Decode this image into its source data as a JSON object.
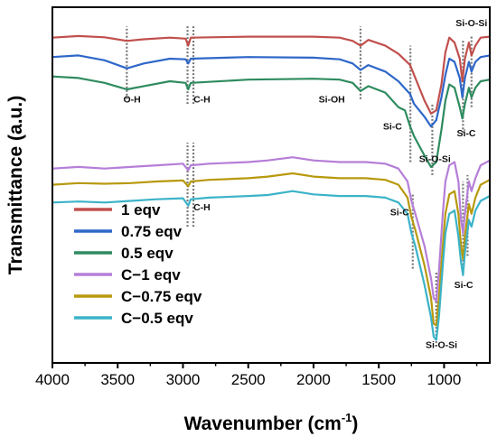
{
  "chart_data": {
    "type": "line",
    "xlabel": "Wavenumber (cm",
    "xlabel_sup": "-1",
    "xlabel_end": ")",
    "ylabel": "Transmittance (a.u.)",
    "xlim": [
      4000,
      650
    ],
    "x_reversed": true,
    "ylim": [
      0,
      100
    ],
    "y_ticks_shown": false,
    "x_ticks": [
      4000,
      3500,
      3000,
      2500,
      2000,
      1500,
      1000
    ],
    "x_tick_labels": [
      "4000",
      "3500",
      "3000",
      "2500",
      "2000",
      "1500",
      "1000"
    ],
    "grid": false,
    "legend_position": "bottom-left",
    "series": [
      {
        "name": "1 eqv",
        "color": "#c0504d",
        "points": [
          [
            4000,
            94.5
          ],
          [
            3800,
            95.0
          ],
          [
            3600,
            94.6
          ],
          [
            3430,
            93.5
          ],
          [
            3300,
            94.0
          ],
          [
            3100,
            94.5
          ],
          [
            2980,
            94.2
          ],
          [
            2960,
            92.0
          ],
          [
            2940,
            94.5
          ],
          [
            2500,
            94.8
          ],
          [
            2000,
            94.8
          ],
          [
            1800,
            94.5
          ],
          [
            1700,
            93.5
          ],
          [
            1640,
            92.0
          ],
          [
            1580,
            93.8
          ],
          [
            1450,
            92.0
          ],
          [
            1350,
            89.5
          ],
          [
            1260,
            86.0
          ],
          [
            1230,
            83.0
          ],
          [
            1150,
            75.0
          ],
          [
            1100,
            71.0
          ],
          [
            1060,
            72.0
          ],
          [
            1020,
            80.0
          ],
          [
            990,
            90.0
          ],
          [
            960,
            94.5
          ],
          [
            920,
            93.0
          ],
          [
            880,
            88.0
          ],
          [
            860,
            81.0
          ],
          [
            840,
            88.0
          ],
          [
            810,
            93.0
          ],
          [
            790,
            89.0
          ],
          [
            760,
            92.0
          ],
          [
            720,
            94.5
          ],
          [
            650,
            94.8
          ]
        ]
      },
      {
        "name": "0.75 eqv",
        "color": "#2e67c8",
        "points": [
          [
            4000,
            88.5
          ],
          [
            3800,
            89.0
          ],
          [
            3600,
            87.5
          ],
          [
            3430,
            85.0
          ],
          [
            3300,
            86.5
          ],
          [
            3100,
            88.0
          ],
          [
            2980,
            87.8
          ],
          [
            2960,
            86.5
          ],
          [
            2940,
            88.0
          ],
          [
            2500,
            88.5
          ],
          [
            2000,
            88.3
          ],
          [
            1800,
            87.8
          ],
          [
            1700,
            86.5
          ],
          [
            1640,
            84.5
          ],
          [
            1580,
            86.0
          ],
          [
            1450,
            84.0
          ],
          [
            1350,
            81.0
          ],
          [
            1260,
            77.0
          ],
          [
            1230,
            74.0
          ],
          [
            1150,
            70.0
          ],
          [
            1100,
            67.0
          ],
          [
            1060,
            69.0
          ],
          [
            1020,
            76.0
          ],
          [
            990,
            83.0
          ],
          [
            960,
            88.0
          ],
          [
            920,
            87.0
          ],
          [
            880,
            82.0
          ],
          [
            860,
            76.0
          ],
          [
            840,
            82.0
          ],
          [
            810,
            87.0
          ],
          [
            790,
            84.0
          ],
          [
            760,
            87.0
          ],
          [
            720,
            88.5
          ],
          [
            650,
            89.0
          ]
        ]
      },
      {
        "name": "0.5 eqv",
        "color": "#2e8b5f",
        "points": [
          [
            4000,
            82.5
          ],
          [
            3800,
            82.0
          ],
          [
            3600,
            80.5
          ],
          [
            3430,
            78.5
          ],
          [
            3300,
            79.5
          ],
          [
            3100,
            81.0
          ],
          [
            2980,
            80.5
          ],
          [
            2960,
            78.5
          ],
          [
            2940,
            80.5
          ],
          [
            2500,
            81.5
          ],
          [
            2000,
            81.8
          ],
          [
            1800,
            81.5
          ],
          [
            1700,
            80.5
          ],
          [
            1640,
            78.0
          ],
          [
            1580,
            79.5
          ],
          [
            1450,
            77.5
          ],
          [
            1350,
            73.0
          ],
          [
            1300,
            72.0
          ],
          [
            1260,
            67.0
          ],
          [
            1230,
            64.0
          ],
          [
            1150,
            58.0
          ],
          [
            1100,
            54.5
          ],
          [
            1060,
            56.0
          ],
          [
            1020,
            66.0
          ],
          [
            990,
            75.0
          ],
          [
            960,
            80.0
          ],
          [
            920,
            79.0
          ],
          [
            880,
            73.0
          ],
          [
            860,
            69.5
          ],
          [
            840,
            74.0
          ],
          [
            810,
            79.0
          ],
          [
            790,
            76.0
          ],
          [
            760,
            79.0
          ],
          [
            720,
            81.0
          ],
          [
            650,
            81.5
          ]
        ]
      },
      {
        "name": "C−1 eqv",
        "color": "#b57ed8",
        "points": [
          [
            4000,
            54.0
          ],
          [
            3800,
            54.5
          ],
          [
            3600,
            54.0
          ],
          [
            3400,
            54.5
          ],
          [
            3200,
            55.0
          ],
          [
            3000,
            55.5
          ],
          [
            2960,
            53.5
          ],
          [
            2940,
            55.0
          ],
          [
            2800,
            55.5
          ],
          [
            2500,
            56.0
          ],
          [
            2350,
            56.5
          ],
          [
            2160,
            57.5
          ],
          [
            2000,
            56.5
          ],
          [
            1800,
            56.0
          ],
          [
            1600,
            56.0
          ],
          [
            1450,
            55.5
          ],
          [
            1350,
            54.0
          ],
          [
            1280,
            50.0
          ],
          [
            1250,
            44.0
          ],
          [
            1220,
            40.0
          ],
          [
            1150,
            30.0
          ],
          [
            1100,
            20.0
          ],
          [
            1080,
            14.0
          ],
          [
            1060,
            13.0
          ],
          [
            1040,
            22.0
          ],
          [
            1010,
            40.0
          ],
          [
            990,
            50.0
          ],
          [
            960,
            55.0
          ],
          [
            920,
            56.0
          ],
          [
            890,
            50.0
          ],
          [
            870,
            38.0
          ],
          [
            855,
            34.0
          ],
          [
            840,
            40.0
          ],
          [
            810,
            50.0
          ],
          [
            790,
            47.0
          ],
          [
            760,
            51.0
          ],
          [
            720,
            55.0
          ],
          [
            650,
            56.5
          ]
        ]
      },
      {
        "name": "C−0.75 eqv",
        "color": "#b8990e",
        "points": [
          [
            4000,
            49.0
          ],
          [
            3800,
            49.5
          ],
          [
            3600,
            49.3
          ],
          [
            3400,
            49.5
          ],
          [
            3200,
            50.0
          ],
          [
            3000,
            50.3
          ],
          [
            2960,
            48.5
          ],
          [
            2940,
            50.0
          ],
          [
            2800,
            50.5
          ],
          [
            2500,
            51.0
          ],
          [
            2350,
            51.5
          ],
          [
            2160,
            52.5
          ],
          [
            2000,
            51.5
          ],
          [
            1800,
            51.0
          ],
          [
            1600,
            51.0
          ],
          [
            1450,
            50.5
          ],
          [
            1350,
            49.0
          ],
          [
            1280,
            45.0
          ],
          [
            1250,
            39.0
          ],
          [
            1220,
            35.0
          ],
          [
            1150,
            24.0
          ],
          [
            1100,
            14.0
          ],
          [
            1080,
            6.0
          ],
          [
            1060,
            5.5
          ],
          [
            1040,
            14.0
          ],
          [
            1010,
            30.0
          ],
          [
            990,
            40.0
          ],
          [
            960,
            46.0
          ],
          [
            920,
            47.0
          ],
          [
            890,
            40.0
          ],
          [
            870,
            30.0
          ],
          [
            855,
            26.0
          ],
          [
            840,
            33.0
          ],
          [
            810,
            43.0
          ],
          [
            790,
            40.0
          ],
          [
            760,
            45.0
          ],
          [
            720,
            49.0
          ],
          [
            650,
            50.5
          ]
        ]
      },
      {
        "name": "C−0.5 eqv",
        "color": "#3bb3c8",
        "points": [
          [
            4000,
            43.5
          ],
          [
            3800,
            43.8
          ],
          [
            3600,
            43.5
          ],
          [
            3400,
            44.0
          ],
          [
            3200,
            44.5
          ],
          [
            3000,
            44.8
          ],
          [
            2960,
            42.5
          ],
          [
            2940,
            44.5
          ],
          [
            2800,
            45.0
          ],
          [
            2500,
            45.5
          ],
          [
            2350,
            45.8
          ],
          [
            2160,
            47.0
          ],
          [
            2000,
            46.0
          ],
          [
            1800,
            45.5
          ],
          [
            1600,
            45.5
          ],
          [
            1450,
            45.0
          ],
          [
            1350,
            43.5
          ],
          [
            1280,
            40.0
          ],
          [
            1250,
            34.0
          ],
          [
            1220,
            30.0
          ],
          [
            1150,
            18.0
          ],
          [
            1100,
            8.0
          ],
          [
            1080,
            2.0
          ],
          [
            1060,
            1.0
          ],
          [
            1040,
            8.0
          ],
          [
            1010,
            24.0
          ],
          [
            990,
            34.0
          ],
          [
            960,
            40.0
          ],
          [
            920,
            41.0
          ],
          [
            890,
            33.0
          ],
          [
            870,
            25.0
          ],
          [
            855,
            21.0
          ],
          [
            840,
            28.0
          ],
          [
            810,
            38.0
          ],
          [
            790,
            36.0
          ],
          [
            760,
            41.0
          ],
          [
            720,
            44.0
          ],
          [
            650,
            45.5
          ]
        ]
      }
    ],
    "vlines": [
      {
        "x": 3430,
        "y0": 75.5,
        "y1": 98.0
      },
      {
        "x": 2965,
        "y0": 74.0,
        "y1": 98.0
      },
      {
        "x": 2920,
        "y0": 74.0,
        "y1": 98.0
      },
      {
        "x": 1640,
        "y0": 75.5,
        "y1": 98.0
      },
      {
        "x": 1258,
        "y0": 56.0,
        "y1": 92.0
      },
      {
        "x": 1090,
        "y0": 52.0,
        "y1": 74.0
      },
      {
        "x": 855,
        "y0": 65.0,
        "y1": 94.0
      },
      {
        "x": 790,
        "y0": 73.0,
        "y1": 95.0
      },
      {
        "x": 2965,
        "y0": 36.0,
        "y1": 62.0
      },
      {
        "x": 2920,
        "y0": 36.0,
        "y1": 62.0
      },
      {
        "x": 1240,
        "y0": 23.0,
        "y1": 46.0
      },
      {
        "x": 1060,
        "y0": 0.0,
        "y1": 22.0
      },
      {
        "x": 855,
        "y0": 23.0,
        "y1": 50.0
      },
      {
        "x": 820,
        "y0": 27.0,
        "y1": 52.0
      }
    ],
    "annotations": [
      {
        "text": "O-H",
        "x": 3390,
        "y": 74.5
      },
      {
        "text": "C-H",
        "x": 2855,
        "y": 74.5
      },
      {
        "text": "Si-OH",
        "x": 1860,
        "y": 74.5
      },
      {
        "text": "Si-C",
        "x": 1395,
        "y": 66.0
      },
      {
        "text": "Si-O-Si",
        "x": 1070,
        "y": 56.0
      },
      {
        "text": "Si-C",
        "x": 830,
        "y": 64.0
      },
      {
        "text": "Si-O-Si",
        "x": 790,
        "y": 98.0
      },
      {
        "text": "C-H",
        "x": 2855,
        "y": 41.0
      },
      {
        "text": "Si-C",
        "x": 1340,
        "y": 39.5
      },
      {
        "text": "Si-C",
        "x": 850,
        "y": 17.0
      },
      {
        "text": "Si-O-Si",
        "x": 1020,
        "y": -1.5
      }
    ]
  }
}
